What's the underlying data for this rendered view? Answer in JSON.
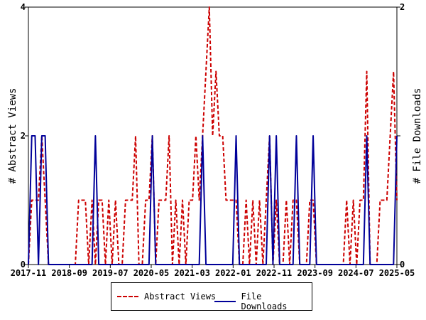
{
  "chart_data": {
    "type": "line",
    "x_tick_labels": [
      "2017-11",
      "2018-09",
      "2019-07",
      "2020-05",
      "2021-03",
      "2022-01",
      "2022-11",
      "2023-09",
      "2024-07",
      "2025-05"
    ],
    "y_left_label": "# Abstract Views",
    "y_right_label": "# File Downloads",
    "y_left_range": [
      0,
      4
    ],
    "y_right_range": [
      0,
      2
    ],
    "y_left_ticks": [
      "0",
      "2",
      "4"
    ],
    "y_right_ticks": [
      "0",
      "1",
      "2"
    ],
    "grid": false,
    "legend_position": "bottom",
    "series": [
      {
        "name": "Abstract Views",
        "axis": "left",
        "color": "#cc0000",
        "style": "dashed",
        "values": [
          0,
          1,
          1,
          1,
          2,
          1,
          0,
          0,
          0,
          0,
          0,
          0,
          0,
          0,
          0,
          1,
          1,
          1,
          0,
          1,
          0,
          1,
          1,
          0,
          1,
          0,
          1,
          0,
          0,
          1,
          1,
          1,
          2,
          0,
          0,
          1,
          1,
          2,
          0,
          1,
          1,
          1,
          2,
          0,
          1,
          0,
          1,
          0,
          1,
          1,
          2,
          1,
          2,
          3,
          4,
          2,
          3,
          2,
          2,
          1,
          1,
          1,
          1,
          0,
          0,
          1,
          0,
          1,
          0,
          1,
          0,
          1,
          2,
          0,
          1,
          0,
          0,
          1,
          0,
          1,
          1,
          0,
          0,
          0,
          1,
          1,
          0,
          0,
          0,
          0,
          0,
          0,
          0,
          0,
          0,
          1,
          0,
          1,
          0,
          1,
          1,
          3,
          0,
          0,
          0,
          1,
          1,
          1,
          2,
          3,
          1
        ]
      },
      {
        "name": "File Downloads",
        "axis": "right",
        "color": "#000099",
        "style": "solid",
        "values": [
          0,
          1,
          1,
          0,
          1,
          1,
          0,
          0,
          0,
          0,
          0,
          0,
          0,
          0,
          0,
          0,
          0,
          0,
          0,
          0,
          1,
          0,
          0,
          0,
          0,
          0,
          0,
          0,
          0,
          0,
          0,
          0,
          0,
          0,
          0,
          0,
          0,
          1,
          0,
          0,
          0,
          0,
          0,
          0,
          0,
          0,
          0,
          0,
          0,
          0,
          0,
          0,
          1,
          0,
          0,
          0,
          0,
          0,
          0,
          0,
          0,
          0,
          1,
          0,
          0,
          0,
          0,
          0,
          0,
          0,
          0,
          0,
          1,
          0,
          1,
          0,
          0,
          0,
          0,
          0,
          1,
          0,
          0,
          0,
          0,
          1,
          0,
          0,
          0,
          0,
          0,
          0,
          0,
          0,
          0,
          0,
          0,
          0,
          0,
          0,
          0,
          1,
          0,
          0,
          0,
          0,
          0,
          0,
          0,
          0,
          1
        ]
      }
    ]
  }
}
